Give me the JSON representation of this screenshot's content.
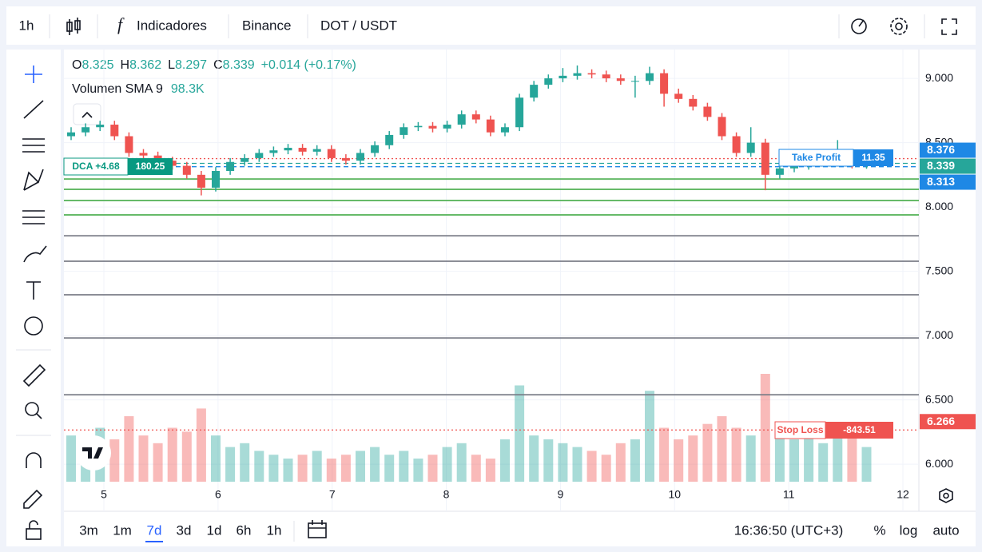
{
  "toolbar": {
    "interval": "1h",
    "indicators": "Indicadores",
    "exchange": "Binance",
    "symbol": "DOT / USDT"
  },
  "legend": {
    "items": [
      {
        "key": "O",
        "value": "8.325"
      },
      {
        "key": "H",
        "value": "8.362"
      },
      {
        "key": "L",
        "value": "8.297"
      },
      {
        "key": "C",
        "value": "8.339"
      }
    ],
    "change": "+0.014 (+0.17%)",
    "volume_name": "Volumen SMA 9",
    "volume_value": "98.3K"
  },
  "chart_data": {
    "type": "candlestick",
    "ylim": [
      5.864,
      9.224
    ],
    "yticks": [
      {
        "value": 9,
        "label": "9.000"
      },
      {
        "value": 8.5,
        "label": "8.500"
      },
      {
        "value": 8,
        "label": "8.000"
      },
      {
        "value": 7.5,
        "label": "7.500"
      },
      {
        "value": 7,
        "label": "7.000"
      },
      {
        "value": 6.5,
        "label": "6.500"
      },
      {
        "value": 6,
        "label": "6.000"
      }
    ],
    "xlim": [
      4.65,
      12.14
    ],
    "xticks": [
      5,
      6,
      7,
      8,
      9,
      10,
      11,
      12
    ],
    "grid": true,
    "up_color": "#26a69a",
    "down_color": "#ef5350",
    "candles": [
      [
        8.55,
        8.62,
        8.52,
        8.58
      ],
      [
        8.58,
        8.65,
        8.55,
        8.62
      ],
      [
        8.62,
        8.67,
        8.59,
        8.64
      ],
      [
        8.64,
        8.67,
        8.52,
        8.55
      ],
      [
        8.55,
        8.58,
        8.39,
        8.42
      ],
      [
        8.42,
        8.45,
        8.37,
        8.4
      ],
      [
        8.4,
        8.43,
        8.33,
        8.36
      ],
      [
        8.36,
        8.39,
        8.29,
        8.32
      ],
      [
        8.32,
        8.35,
        8.22,
        8.25
      ],
      [
        8.25,
        8.28,
        8.09,
        8.15
      ],
      [
        8.15,
        8.31,
        8.12,
        8.28
      ],
      [
        8.28,
        8.38,
        8.25,
        8.35
      ],
      [
        8.35,
        8.41,
        8.32,
        8.38
      ],
      [
        8.38,
        8.45,
        8.35,
        8.42
      ],
      [
        8.42,
        8.47,
        8.39,
        8.44
      ],
      [
        8.44,
        8.49,
        8.41,
        8.46
      ],
      [
        8.46,
        8.49,
        8.4,
        8.43
      ],
      [
        8.43,
        8.48,
        8.4,
        8.45
      ],
      [
        8.45,
        8.48,
        8.35,
        8.38
      ],
      [
        8.38,
        8.41,
        8.33,
        8.36
      ],
      [
        8.36,
        8.45,
        8.33,
        8.42
      ],
      [
        8.42,
        8.51,
        8.39,
        8.48
      ],
      [
        8.48,
        8.59,
        8.45,
        8.56
      ],
      [
        8.56,
        8.65,
        8.53,
        8.62
      ],
      [
        8.62,
        8.66,
        8.59,
        8.63
      ],
      [
        8.63,
        8.66,
        8.58,
        8.61
      ],
      [
        8.61,
        8.67,
        8.58,
        8.64
      ],
      [
        8.64,
        8.75,
        8.61,
        8.72
      ],
      [
        8.72,
        8.75,
        8.65,
        8.68
      ],
      [
        8.68,
        8.71,
        8.55,
        8.58
      ],
      [
        8.58,
        8.65,
        8.55,
        8.62
      ],
      [
        8.62,
        8.88,
        8.59,
        8.85
      ],
      [
        8.85,
        8.98,
        8.82,
        8.95
      ],
      [
        8.95,
        9.03,
        8.92,
        9.0
      ],
      [
        9.0,
        9.08,
        8.97,
        9.02
      ],
      [
        9.02,
        9.1,
        8.99,
        9.04
      ],
      [
        9.04,
        9.07,
        9.0,
        9.03
      ],
      [
        9.03,
        9.06,
        8.97,
        9.0
      ],
      [
        9.0,
        9.03,
        8.95,
        8.98
      ],
      [
        8.98,
        9.02,
        8.85,
        8.98
      ],
      [
        8.98,
        9.09,
        8.95,
        9.04
      ],
      [
        9.04,
        9.07,
        8.78,
        8.88
      ],
      [
        8.88,
        8.92,
        8.81,
        8.84
      ],
      [
        8.84,
        8.87,
        8.75,
        8.78
      ],
      [
        8.78,
        8.81,
        8.67,
        8.7
      ],
      [
        8.7,
        8.73,
        8.52,
        8.55
      ],
      [
        8.55,
        8.58,
        8.39,
        8.42
      ],
      [
        8.42,
        8.62,
        8.39,
        8.5
      ],
      [
        8.5,
        8.53,
        8.13,
        8.25
      ],
      [
        8.25,
        8.36,
        8.22,
        8.3
      ],
      [
        8.3,
        8.4,
        8.27,
        8.32
      ],
      [
        8.32,
        8.43,
        8.29,
        8.36
      ],
      [
        8.36,
        8.44,
        8.33,
        8.38
      ],
      [
        8.38,
        8.52,
        8.35,
        8.4
      ],
      [
        8.4,
        8.45,
        8.3,
        8.325
      ],
      [
        8.325,
        8.362,
        8.297,
        8.339
      ]
    ],
    "volumes": [
      60,
      45,
      70,
      55,
      85,
      60,
      50,
      70,
      65,
      95,
      60,
      45,
      50,
      40,
      35,
      30,
      35,
      40,
      30,
      35,
      40,
      45,
      35,
      40,
      30,
      35,
      45,
      50,
      35,
      30,
      55,
      125,
      60,
      55,
      50,
      45,
      40,
      35,
      50,
      55,
      118,
      70,
      55,
      60,
      75,
      85,
      70,
      60,
      140,
      65,
      55,
      70,
      50,
      60,
      75,
      45
    ],
    "levels": [
      {
        "value": 8.376,
        "color": "#ef5350",
        "style": "dotted"
      },
      {
        "value": 8.339,
        "color": "#26a69a",
        "style": "dashed"
      },
      {
        "value": 8.313,
        "color": "#1e88e5",
        "style": "dashed"
      },
      {
        "value": 8.217,
        "color": "#4caf50",
        "style": "solid"
      },
      {
        "value": 8.137,
        "color": "#4caf50",
        "style": "solid"
      },
      {
        "value": 8.05,
        "color": "#4caf50",
        "style": "solid"
      },
      {
        "value": 7.938,
        "color": "#4caf50",
        "style": "solid"
      },
      {
        "value": 7.776,
        "color": "#787b86",
        "style": "solid"
      },
      {
        "value": 7.578,
        "color": "#787b86",
        "style": "solid"
      },
      {
        "value": 7.317,
        "color": "#787b86",
        "style": "solid"
      },
      {
        "value": 6.981,
        "color": "#787b86",
        "style": "solid"
      },
      {
        "value": 6.54,
        "color": "#787b86",
        "style": "solid"
      },
      {
        "value": 6.266,
        "color": "#ef5350",
        "style": "dotted"
      }
    ],
    "price_tags": [
      {
        "value": 8.376,
        "label": "8.376",
        "color": "#1e88e5"
      },
      {
        "value": 8.339,
        "label": "8.339",
        "color": "#26a69a"
      },
      {
        "value": 8.313,
        "label": "8.313",
        "color": "#1e88e5"
      },
      {
        "value": 6.266,
        "label": "6.266",
        "color": "#ef5350"
      }
    ]
  },
  "orders": {
    "take_profit": {
      "label": "Take Profit",
      "amount": "11.35"
    },
    "dca": {
      "label": "DCA +4.68",
      "amount": "180.25"
    },
    "stop_loss": {
      "label": "Stop Loss",
      "amount": "-843.51"
    }
  },
  "bottom_bar": {
    "ranges": [
      "3m",
      "1m",
      "7d",
      "3d",
      "1d",
      "6h",
      "1h"
    ],
    "clock": "16:36:50 (UTC+3)",
    "percent": "%",
    "log": "log",
    "auto": "auto"
  }
}
